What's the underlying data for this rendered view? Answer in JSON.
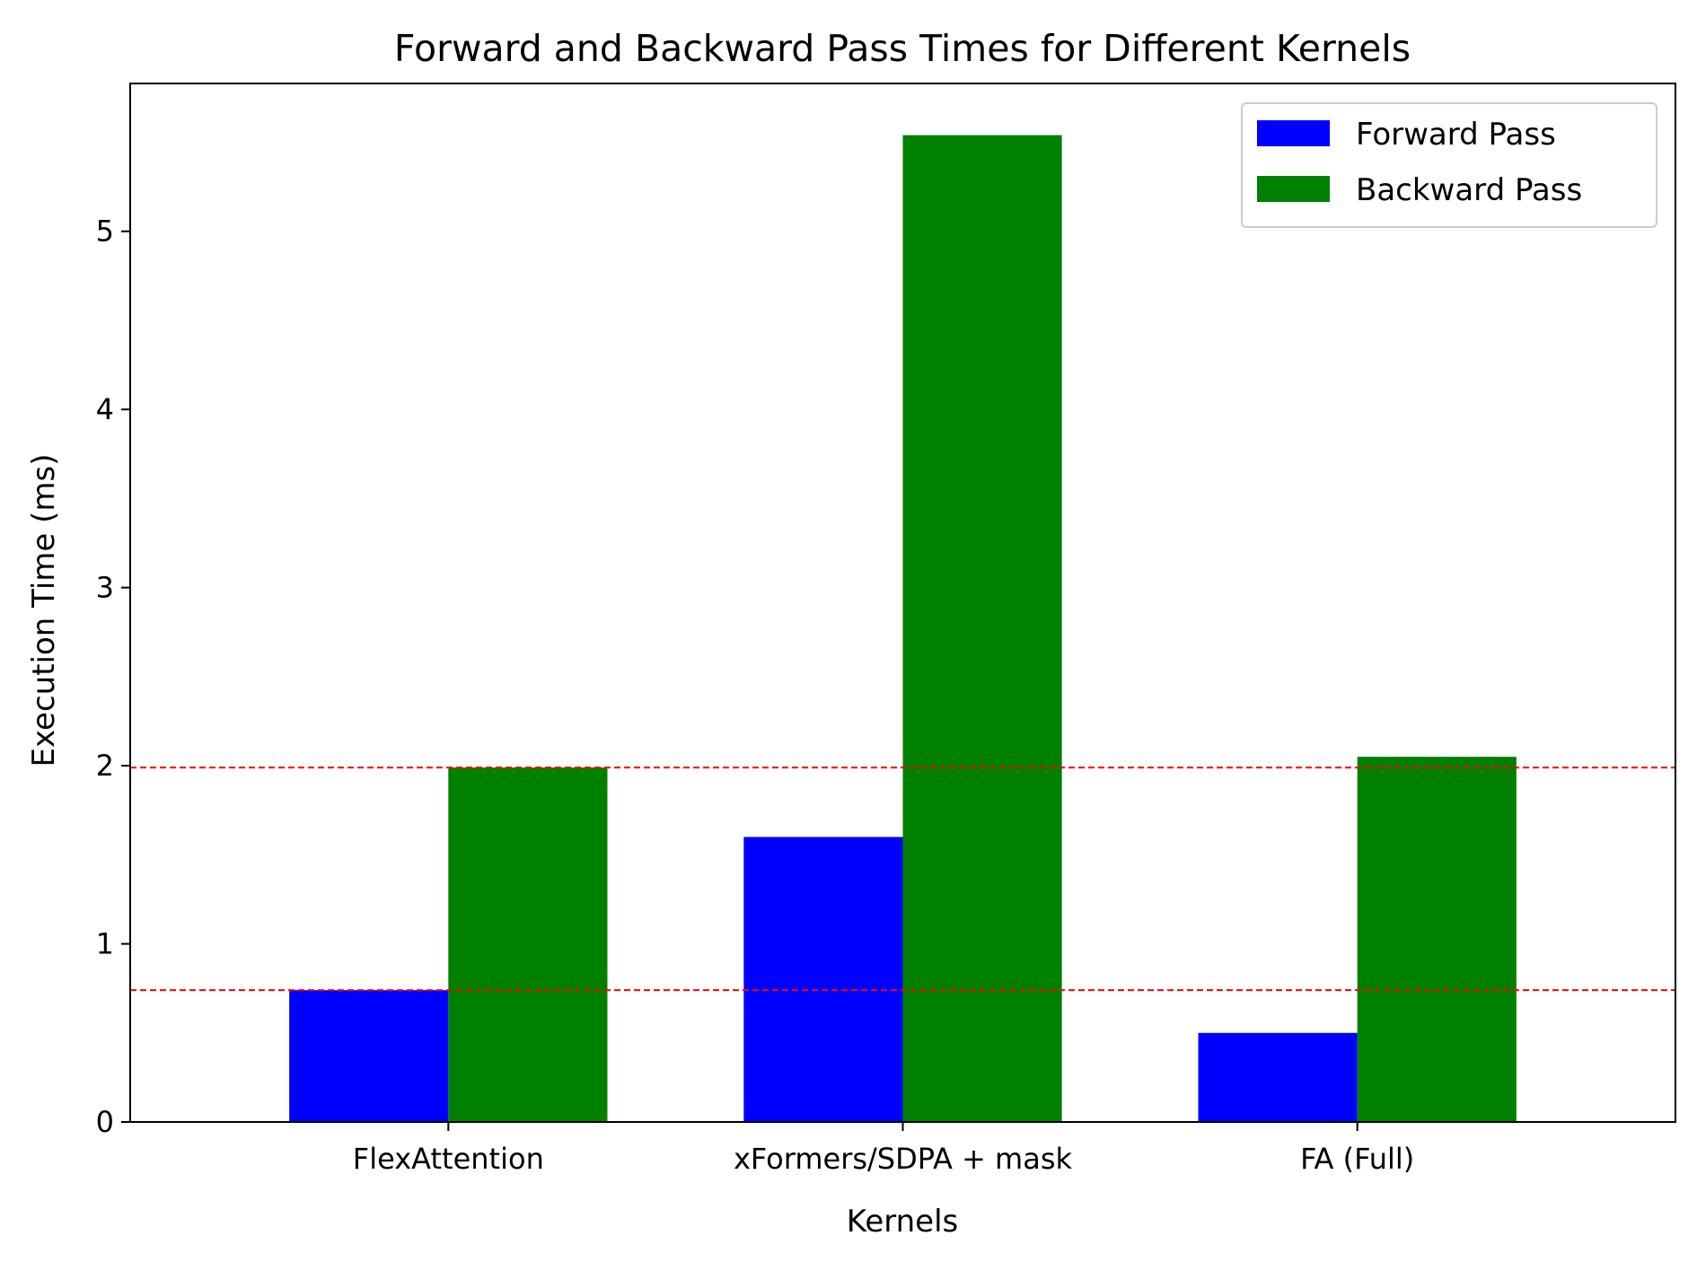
{
  "chart_data": {
    "type": "bar",
    "title": "Forward and Backward Pass Times for Different Kernels",
    "xlabel": "Kernels",
    "ylabel": "Execution Time (ms)",
    "categories": [
      "FlexAttention",
      "xFormers/SDPA + mask",
      "FA (Full)"
    ],
    "series": [
      {
        "name": "Forward Pass",
        "values": [
          0.74,
          1.6,
          0.5
        ],
        "color": "#0000ff"
      },
      {
        "name": "Backward Pass",
        "values": [
          1.99,
          5.54,
          2.05
        ],
        "color": "#008000"
      }
    ],
    "ylim": [
      0,
      5.83
    ],
    "yticks": [
      0,
      1,
      2,
      3,
      4,
      5
    ],
    "reference_lines": [
      {
        "value": 1.99,
        "color": "#ff0000",
        "style": "dashed"
      },
      {
        "value": 0.74,
        "color": "#ff0000",
        "style": "dashed"
      }
    ],
    "grid": false,
    "legend_position": "upper-right"
  }
}
